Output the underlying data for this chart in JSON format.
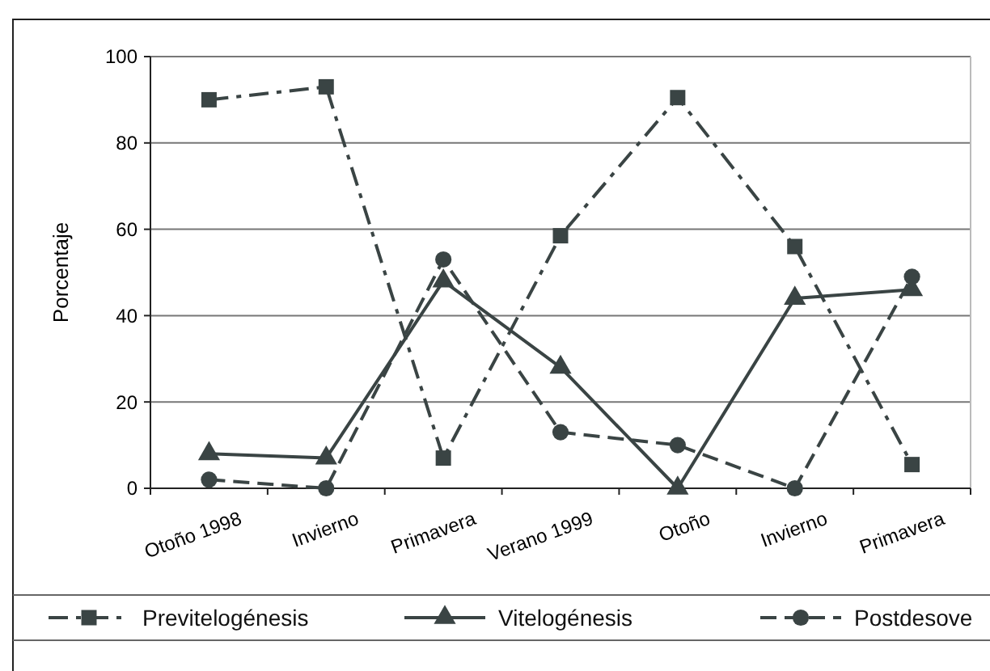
{
  "chart_data": {
    "type": "line",
    "ylabel": "Porcentaje",
    "categories": [
      "Otoño 1998",
      "Invierno",
      "Primavera",
      "Verano  1999",
      "Otoño",
      "Invierno",
      "Primavera"
    ],
    "series": [
      {
        "name": "Previtelogénesis",
        "color": "#3a4444",
        "marker": "square",
        "line_style": "dashdot",
        "values": [
          90,
          93,
          7,
          58.5,
          90.5,
          56,
          5.5
        ]
      },
      {
        "name": "Vitelogénesis",
        "color": "#3a4444",
        "marker": "triangle",
        "line_style": "solid",
        "values": [
          8,
          7,
          48,
          28,
          0,
          44,
          46
        ]
      },
      {
        "name": "Postdesove",
        "color": "#3a4444",
        "marker": "circle",
        "line_style": "dashed",
        "values": [
          2,
          0,
          53,
          13,
          10,
          0,
          49
        ]
      }
    ],
    "ylim": [
      0,
      100
    ],
    "yticks": [
      0,
      20,
      40,
      60,
      80,
      100
    ],
    "grid": "y",
    "legend": "bottom"
  }
}
